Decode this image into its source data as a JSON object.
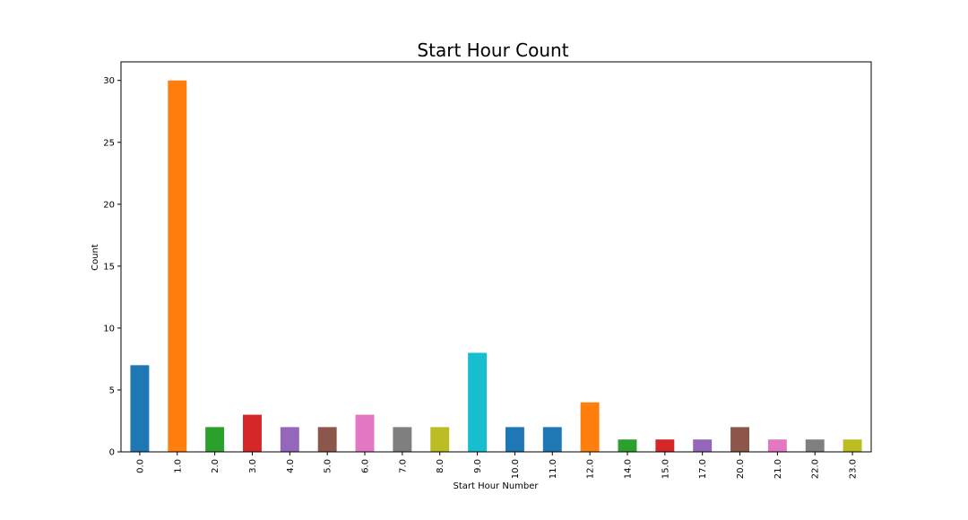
{
  "chart_data": {
    "type": "bar",
    "title": "Start Hour Count",
    "xlabel": "Start Hour Number",
    "ylabel": "Count",
    "categories": [
      "0.0",
      "1.0",
      "2.0",
      "3.0",
      "4.0",
      "5.0",
      "6.0",
      "7.0",
      "8.0",
      "9.0",
      "10.0",
      "11.0",
      "12.0",
      "14.0",
      "15.0",
      "17.0",
      "20.0",
      "21.0",
      "22.0",
      "23.0"
    ],
    "values": [
      7,
      30,
      2,
      3,
      2,
      2,
      3,
      2,
      2,
      8,
      2,
      2,
      4,
      1,
      1,
      1,
      2,
      1,
      1,
      1
    ],
    "colors": [
      "#1f77b4",
      "#ff7f0e",
      "#2ca02c",
      "#d62728",
      "#9467bd",
      "#8c564b",
      "#e377c2",
      "#7f7f7f",
      "#bcbd22",
      "#17becf",
      "#1f77b4",
      "#1f77b4",
      "#ff7f0e",
      "#2ca02c",
      "#d62728",
      "#9467bd",
      "#8c564b",
      "#e377c2",
      "#7f7f7f",
      "#bcbd22"
    ],
    "ylim": [
      0,
      31.5
    ],
    "yticks": [
      0,
      5,
      10,
      15,
      20,
      25,
      30
    ],
    "grid": false,
    "legend": "none"
  }
}
